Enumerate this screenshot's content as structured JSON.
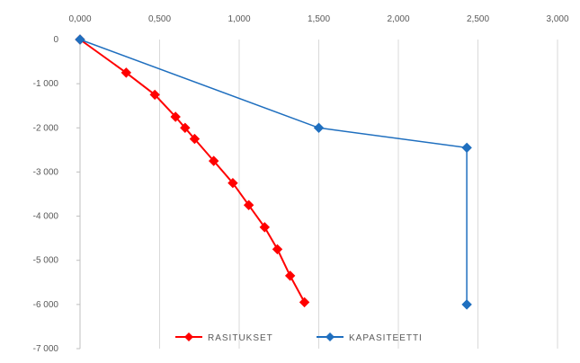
{
  "chart_data": {
    "type": "line",
    "title": "",
    "xlabel": "",
    "ylabel": "",
    "x_axis_position": "top",
    "y_axis_inverted": true,
    "xlim": [
      0,
      3
    ],
    "ylim": [
      0,
      7000
    ],
    "x_ticks": [
      0,
      0.5,
      1,
      1.5,
      2,
      2.5,
      3
    ],
    "x_tick_labels": [
      "0,000",
      "0,500",
      "1,000",
      "1,500",
      "2,000",
      "2,500",
      "3,000"
    ],
    "y_ticks": [
      0,
      1000,
      2000,
      3000,
      4000,
      5000,
      6000,
      7000
    ],
    "y_tick_labels": [
      "0",
      "-1 000",
      "-2 000",
      "-3 000",
      "-4 000",
      "-5 000",
      "-6 000",
      "-7 000"
    ],
    "grid": "vertical",
    "legend_position": "bottom-center",
    "series": [
      {
        "name": "RASITUKSET",
        "color": "#ff0000",
        "marker": "diamond",
        "points": [
          {
            "x": 0.0,
            "y": 0
          },
          {
            "x": 0.29,
            "y": 750
          },
          {
            "x": 0.47,
            "y": 1250
          },
          {
            "x": 0.6,
            "y": 1750
          },
          {
            "x": 0.66,
            "y": 2000
          },
          {
            "x": 0.72,
            "y": 2250
          },
          {
            "x": 0.84,
            "y": 2750
          },
          {
            "x": 0.96,
            "y": 3250
          },
          {
            "x": 1.06,
            "y": 3750
          },
          {
            "x": 1.16,
            "y": 4250
          },
          {
            "x": 1.24,
            "y": 4750
          },
          {
            "x": 1.32,
            "y": 5350
          },
          {
            "x": 1.41,
            "y": 5950
          }
        ]
      },
      {
        "name": "KAPASITEETTI",
        "color": "#1f6fbf",
        "marker": "diamond",
        "points": [
          {
            "x": 0.0,
            "y": 0
          },
          {
            "x": 1.5,
            "y": 2000
          },
          {
            "x": 2.43,
            "y": 2450
          },
          {
            "x": 2.43,
            "y": 6000
          }
        ]
      }
    ]
  }
}
